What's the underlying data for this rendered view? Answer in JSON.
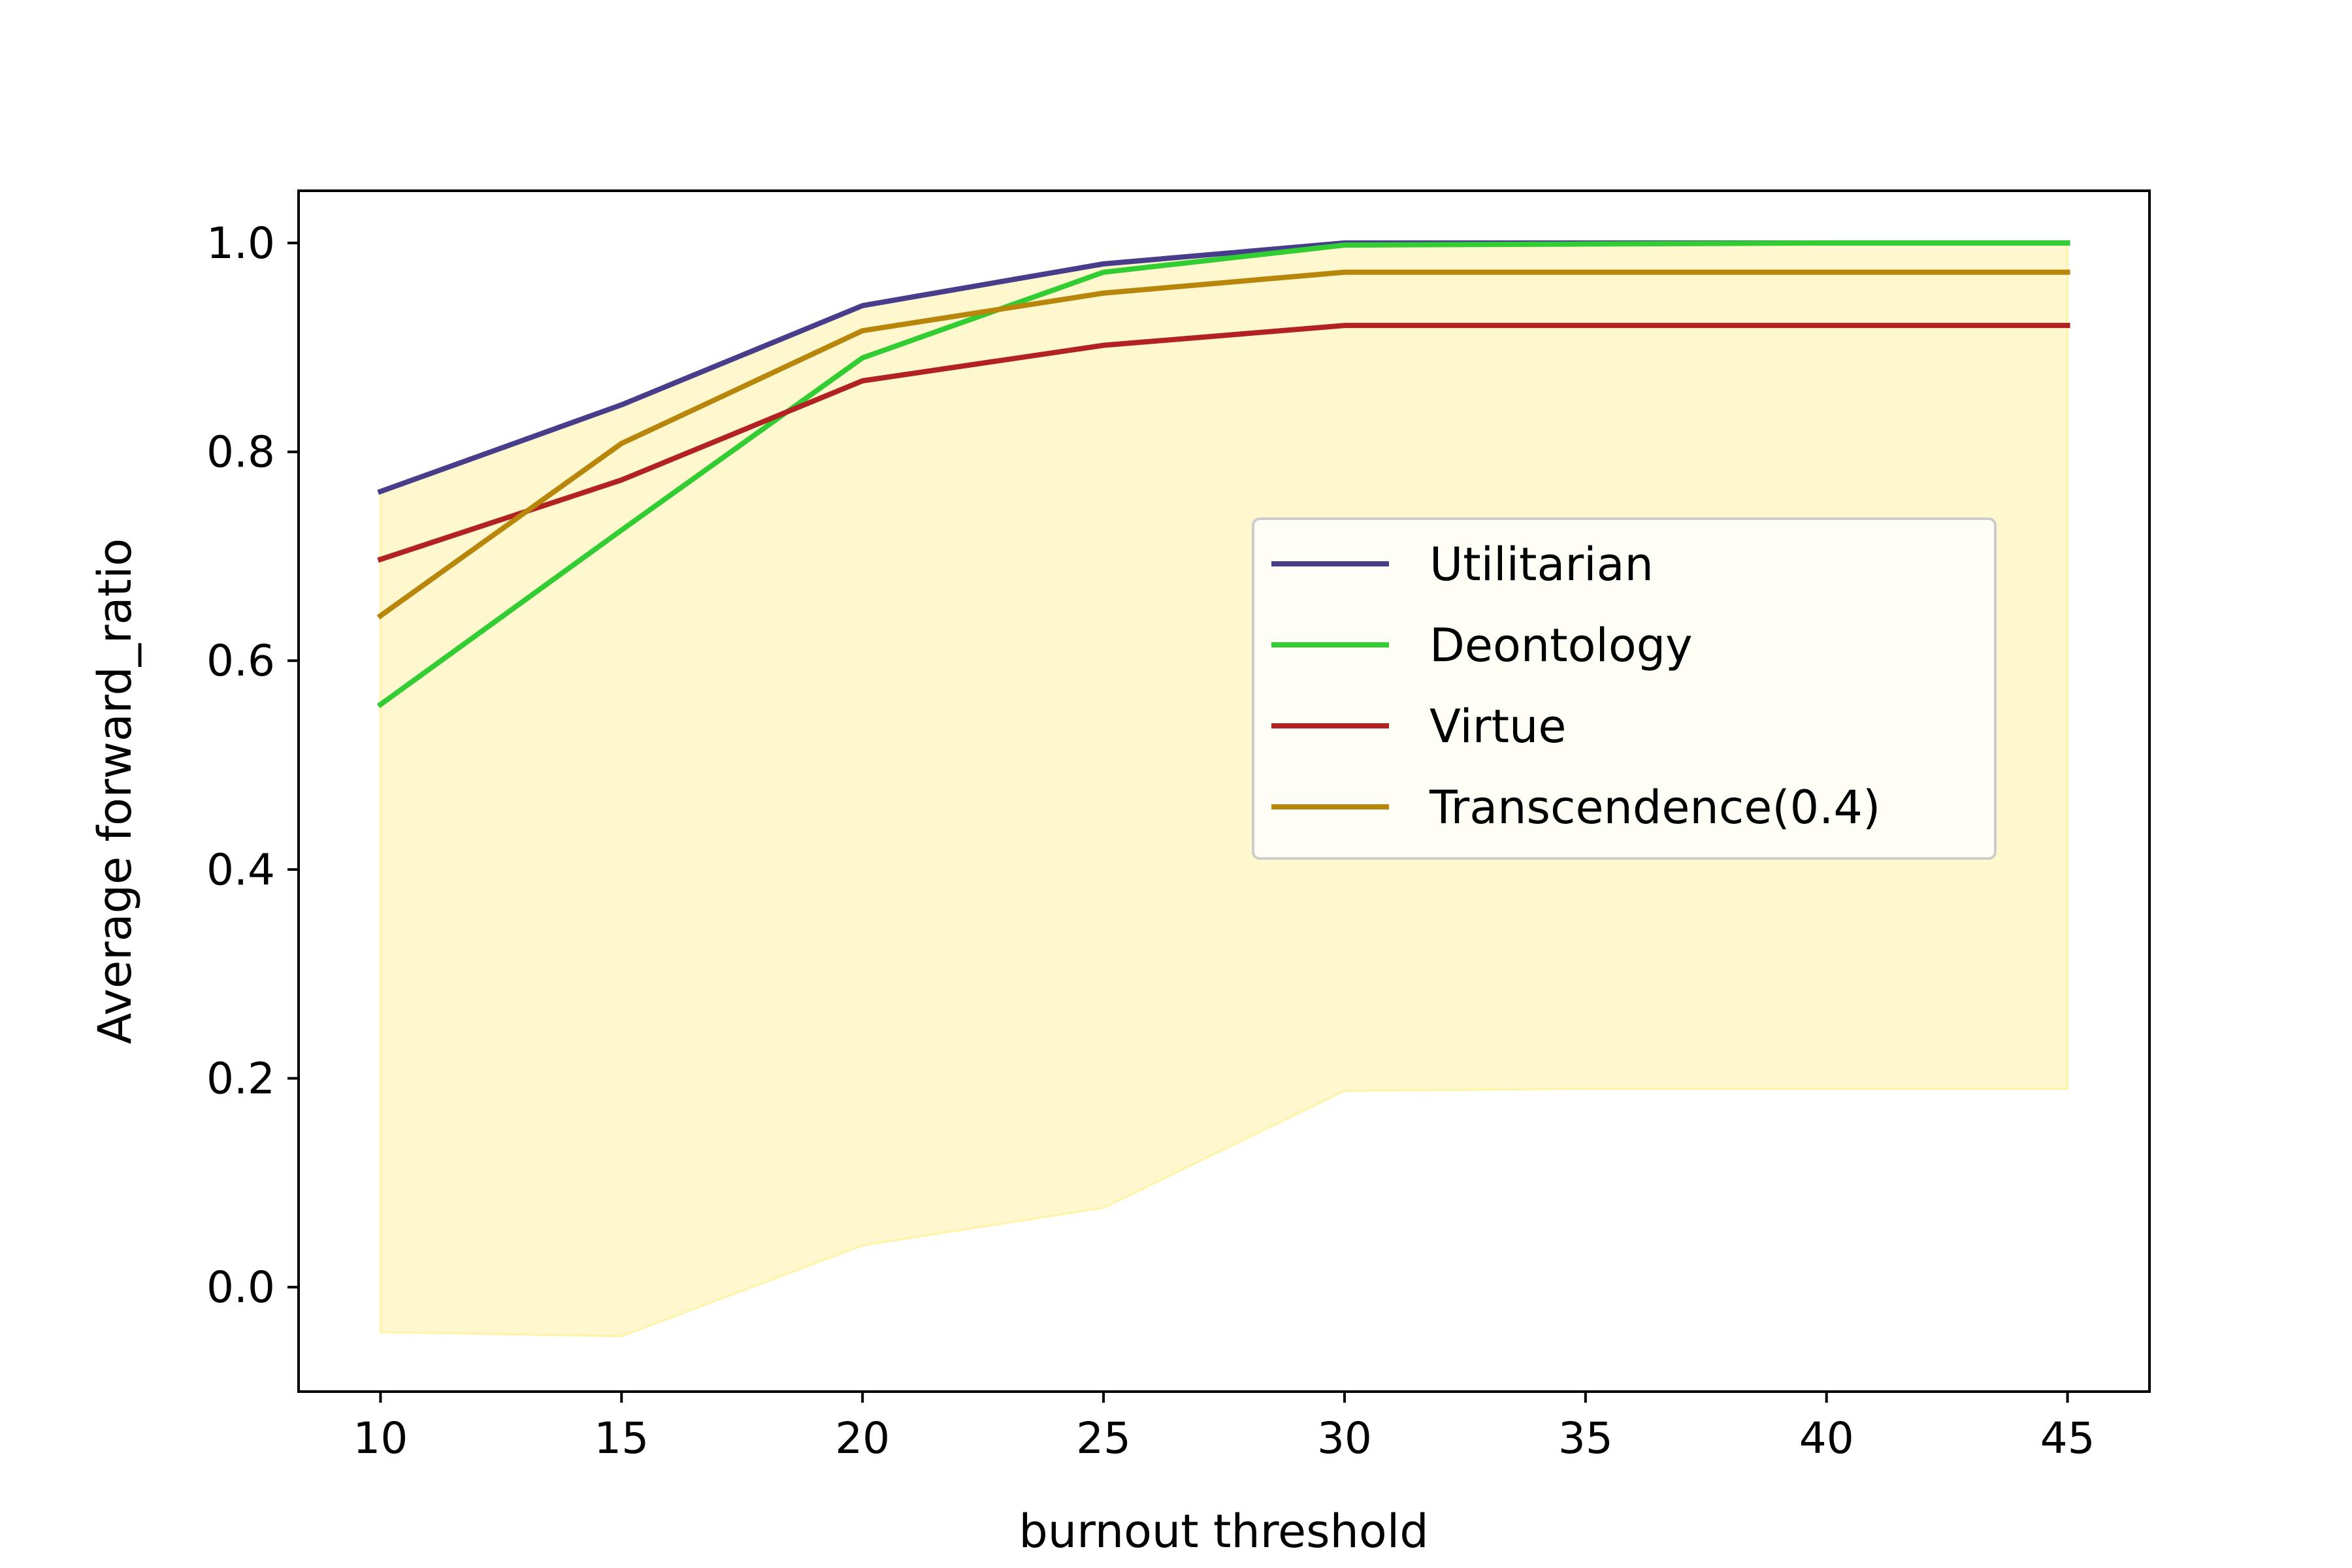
{
  "chart_data": {
    "type": "line",
    "title": "",
    "xlabel": "burnout threshold",
    "ylabel": "Average forward_ratio",
    "x": [
      10,
      15,
      20,
      25,
      30,
      35,
      40,
      45
    ],
    "xticks": [
      "10",
      "15",
      "20",
      "25",
      "30",
      "35",
      "40",
      "45"
    ],
    "yticks": [
      "0.0",
      "0.2",
      "0.4",
      "0.6",
      "0.8",
      "1.0"
    ],
    "xlim": [
      8.3,
      46.7
    ],
    "ylim": [
      -0.1,
      1.05
    ],
    "grid": false,
    "legend_position": "center-right",
    "band": {
      "color": "#fff3a8",
      "lower": [
        -0.043,
        -0.047,
        0.04,
        0.076,
        0.188,
        0.19,
        0.19,
        0.19
      ],
      "upper": [
        0.762,
        0.845,
        0.94,
        0.98,
        1.0,
        1.0,
        1.0,
        1.0
      ]
    },
    "series": [
      {
        "name": "Utilitarian",
        "color": "#483d8b",
        "values": [
          0.762,
          0.845,
          0.94,
          0.98,
          1.0,
          1.0,
          1.0,
          1.0
        ]
      },
      {
        "name": "Deontology",
        "color": "#32cd32",
        "values": [
          0.558,
          0.725,
          0.89,
          0.972,
          0.998,
          0.999,
          1.0,
          1.0
        ]
      },
      {
        "name": "Virtue",
        "color": "#b22222",
        "values": [
          0.697,
          0.773,
          0.868,
          0.902,
          0.921,
          0.921,
          0.921,
          0.921
        ]
      },
      {
        "name": "Transcendence(0.4)",
        "color": "#b8860b",
        "values": [
          0.643,
          0.808,
          0.916,
          0.952,
          0.972,
          0.972,
          0.972,
          0.972
        ]
      }
    ]
  }
}
